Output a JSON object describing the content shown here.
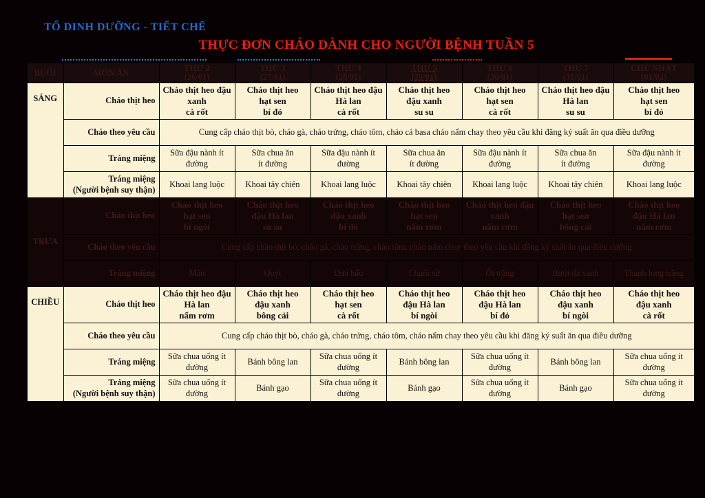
{
  "header": {
    "department": "TỔ DINH DƯỠNG - TIẾT CHẾ",
    "title": "THỰC ĐƠN CHÁO DÀNH CHO NGƯỜI BỆNH TUẦN 5"
  },
  "table": {
    "columns": [
      "BUỔI",
      "MÓN ĂN",
      "THỨ 2\n(26/01)",
      "THỨ 3\n(27/01)",
      "THỨ 4\n(28/01)",
      "THỨ 5\n(29/01)",
      "THỨ 6\n(30/01)",
      "THỨ 7\n(31/01)",
      "CHỦ NHẬT\n(01/02)"
    ],
    "sections": [
      {
        "name": "SÁNG",
        "dimmed": false,
        "rows": [
          {
            "dish": "Cháo thịt heo",
            "bold": true,
            "cells": [
              "Cháo thịt heo đậu\nxanh\ncà rốt",
              "Cháo thịt heo\nhạt sen\nbí đỏ",
              "Cháo thịt heo đậu\nHà lan\ncà rốt",
              "Cháo thịt heo\nđậu xanh\nsu su",
              "Cháo thịt heo\nhạt sen\ncà rốt",
              "Cháo thịt heo đậu\nHà lan\nsu su",
              "Cháo thịt heo\nhạt sen\nbí đỏ"
            ]
          },
          {
            "dish": "Cháo theo yêu cầu",
            "span": "Cung cấp cháo thịt bò, cháo gà, cháo trứng, cháo tôm, cháo cá basa cháo nấm chay theo yêu cầu khi đăng ký suất ăn qua điều dưỡng"
          },
          {
            "dish": "Tráng miệng",
            "cells": [
              "Sữa đậu nành ít\nđường",
              "Sữa chua ăn\nít đường",
              "Sữa đậu nành ít\nđường",
              "Sữa chua ăn\nít đường",
              "Sữa đậu nành ít\nđường",
              "Sữa chua ăn\nít đường",
              "Sữa đậu nành ít\nđường"
            ]
          },
          {
            "dish": "Tráng miệng\n(Người bệnh suy thận)",
            "cells": [
              "Khoai lang luộc",
              "Khoai tây chiên",
              "Khoai lang luộc",
              "Khoai tây chiên",
              "Khoai lang luộc",
              "Khoai tây chiên",
              "Khoai lang luộc"
            ]
          }
        ]
      },
      {
        "name": "TRƯA",
        "dimmed": true,
        "rows": [
          {
            "dish": "Cháo thịt heo",
            "bold": true,
            "cells": [
              "Cháo thịt heo\nhạt sen\nbí ngòi",
              "Cháo thịt heo\nđậu Hà lan\nsu su",
              "Cháo thịt heo\nđậu xanh\nbí đỏ",
              "Cháo thịt heo\nhạt sen\nnấm rơm",
              "Cháo thịt heo đậu\nxanh\nnấm rơm",
              "Cháo thịt heo\nhạt sen\nbông cải",
              "Cháo thịt heo\nđậu Hà lan\nnấm rơm"
            ]
          },
          {
            "dish": "Cháo theo yêu cầu",
            "span": "Cung cấp cháo thịt bò, cháo gà, cháo trứng, cháo tôm, cháo nấm chay theo yêu cầu khi đăng ký suất ăn qua điều dưỡng"
          },
          {
            "dish": "Tráng miệng",
            "cells": [
              "Mận",
              "Quýt",
              "Dưa hấu",
              "Chuối sứ",
              "Ổi trắng",
              "Bưởi da xanh",
              "Thanh long trắng"
            ]
          }
        ]
      },
      {
        "name": "CHIỀU",
        "dimmed": false,
        "rows": [
          {
            "dish": "Cháo thịt heo",
            "bold": true,
            "cells": [
              "Cháo thịt heo đậu\nHà lan\nnấm rơm",
              "Cháo thịt heo\nđậu xanh\nbông cải",
              "Cháo thịt heo\nhạt sen\ncà rốt",
              "Cháo thịt heo\nđậu Hà lan\nbí ngòi",
              "Cháo thịt heo\nđậu Hà lan\nbí đỏ",
              "Cháo thịt heo\nđậu xanh\nbí ngòi",
              "Cháo thịt heo\nđậu xanh\ncà rốt"
            ]
          },
          {
            "dish": "Cháo theo yêu cầu",
            "span": "Cung cấp cháo thịt bò, cháo gà, cháo trứng, cháo tôm, cháo nấm chay theo yêu cầu khi đăng ký suất ăn qua điều dưỡng"
          },
          {
            "dish": "Tráng miệng",
            "cells": [
              "Sữa chua uống ít\nđường",
              "Bánh bông lan",
              "Sữa chua uống ít\nđường",
              "Bánh bông lan",
              "Sữa chua uống ít\nđường",
              "Bánh bông lan",
              "Sữa chua uống ít\nđường"
            ]
          },
          {
            "dish": "Tráng miệng\n(Người bệnh suy thận)",
            "cells": [
              "Sữa chua uống ít\nđường",
              "Bánh gạo",
              "Sữa chua uống ít\nđường",
              "Bánh gạo",
              "Sữa chua uống ít\nđường",
              "Bánh gạo",
              "Sữa chua uống ít\nđường"
            ]
          }
        ]
      }
    ]
  },
  "colors": {
    "page_background": "#070103",
    "cream_cell": "#FBF2D5",
    "dimmed_cell": "#140607",
    "dimmed_text": "#3D1A18",
    "title_red": "#E81C14",
    "department_blue": "#2B66CC"
  }
}
